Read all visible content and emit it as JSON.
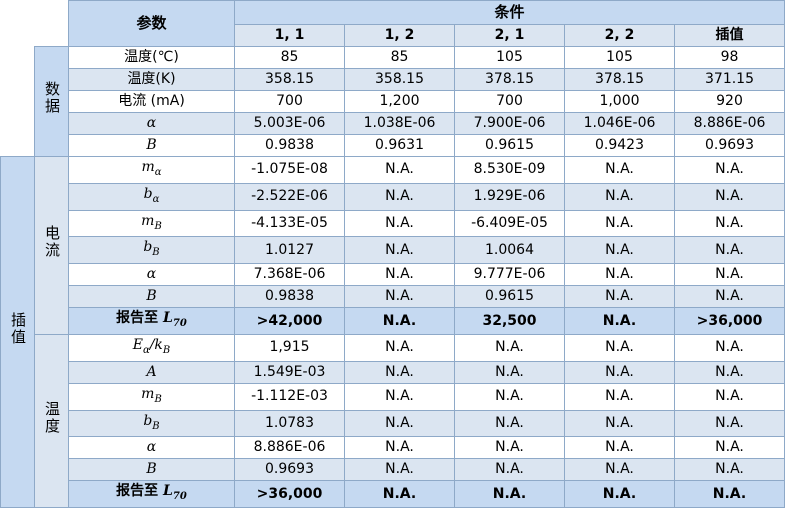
{
  "header": {
    "param_label": "参数",
    "conditions_label": "条件",
    "columns": [
      "1, 1",
      "1, 2",
      "2, 1",
      "2, 2",
      "插值"
    ]
  },
  "groups": {
    "data": "数据",
    "interp": "插值",
    "current": "电流",
    "temp": "温度"
  },
  "data_rows": [
    {
      "label": "温度(℃)",
      "values": [
        "85",
        "85",
        "105",
        "105",
        "98"
      ]
    },
    {
      "label": "温度(K)",
      "values": [
        "358.15",
        "358.15",
        "378.15",
        "378.15",
        "371.15"
      ]
    },
    {
      "label": "电流 (mA)",
      "values": [
        "700",
        "1,200",
        "700",
        "1,000",
        "920"
      ]
    },
    {
      "label": "α",
      "values": [
        "5.003E-06",
        "1.038E-06",
        "7.900E-06",
        "1.046E-06",
        "8.886E-06"
      ]
    },
    {
      "label": "B",
      "values": [
        "0.9838",
        "0.9631",
        "0.9615",
        "0.9423",
        "0.9693"
      ]
    }
  ],
  "current_rows": [
    {
      "label": "m",
      "sub": "α",
      "values": [
        "-1.075E-08",
        "N.A.",
        "8.530E-09",
        "N.A.",
        "N.A."
      ]
    },
    {
      "label": "b",
      "sub": "α",
      "values": [
        "-2.522E-06",
        "N.A.",
        "1.929E-06",
        "N.A.",
        "N.A."
      ]
    },
    {
      "label": "m",
      "sub": "B",
      "values": [
        "-4.133E-05",
        "N.A.",
        "-6.409E-05",
        "N.A.",
        "N.A."
      ]
    },
    {
      "label": "b",
      "sub": "B",
      "values": [
        "1.0127",
        "N.A.",
        "1.0064",
        "N.A.",
        "N.A."
      ]
    },
    {
      "label": "α",
      "sub": "",
      "values": [
        "7.368E-06",
        "N.A.",
        "9.777E-06",
        "N.A.",
        "N.A."
      ]
    },
    {
      "label": "B",
      "sub": "",
      "values": [
        "0.9838",
        "N.A.",
        "0.9615",
        "N.A.",
        "N.A."
      ]
    }
  ],
  "current_report": {
    "label": "报告至 ",
    "sym": "L",
    "sub": "70",
    "values": [
      ">42,000",
      "N.A.",
      "32,500",
      "N.A.",
      ">36,000"
    ]
  },
  "temp_rows": [
    {
      "label": "E",
      "sub": "α",
      "suffix": "/k",
      "suffix_sub": "B",
      "values": [
        "1,915",
        "N.A.",
        "N.A.",
        "N.A.",
        "N.A."
      ]
    },
    {
      "label": "A",
      "sub": "",
      "values": [
        "1.549E-03",
        "N.A.",
        "N.A.",
        "N.A.",
        "N.A."
      ]
    },
    {
      "label": "m",
      "sub": "B",
      "values": [
        "-1.112E-03",
        "N.A.",
        "N.A.",
        "N.A.",
        "N.A."
      ]
    },
    {
      "label": "b",
      "sub": "B",
      "values": [
        "1.0783",
        "N.A.",
        "N.A.",
        "N.A.",
        "N.A."
      ]
    },
    {
      "label": "α",
      "sub": "",
      "values": [
        "8.886E-06",
        "N.A.",
        "N.A.",
        "N.A.",
        "N.A."
      ]
    },
    {
      "label": "B",
      "sub": "",
      "values": [
        "0.9693",
        "N.A.",
        "N.A.",
        "N.A.",
        "N.A."
      ]
    }
  ],
  "temp_report": {
    "label": "报告至 ",
    "sym": "L",
    "sub": "70",
    "values": [
      ">36,000",
      "N.A.",
      "N.A.",
      "N.A.",
      "N.A."
    ]
  }
}
